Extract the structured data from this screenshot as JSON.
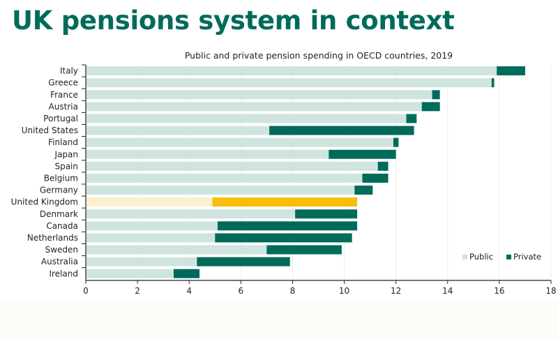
{
  "page": {
    "title": "UK pensions system in context"
  },
  "colors": {
    "public": "#cfe4df",
    "private": "#006b5a",
    "highlight_public": "#fdf0cf",
    "highlight_private": "#f7be0c",
    "title": "#006b5a"
  },
  "chart_data": {
    "type": "bar",
    "orientation": "horizontal",
    "stacked": true,
    "title": "Public and private pension spending in OECD countries, 2019",
    "xlabel": "",
    "ylabel": "",
    "xlim": [
      0,
      18
    ],
    "xticks": [
      0,
      2,
      4,
      6,
      8,
      10,
      12,
      14,
      16,
      18
    ],
    "grid": "vertical",
    "legend_position": "bottom-right",
    "highlight": "United Kingdom",
    "categories": [
      "Italy",
      "Greece",
      "France",
      "Austria",
      "Portugal",
      "United States",
      "Finland",
      "Japan",
      "Spain",
      "Belgium",
      "Germany",
      "United Kingdom",
      "Denmark",
      "Canada",
      "Netherlands",
      "Sweden",
      "Australia",
      "Ireland"
    ],
    "series": [
      {
        "name": "Public",
        "values": [
          15.9,
          15.7,
          13.4,
          13.0,
          12.4,
          7.1,
          11.9,
          9.4,
          11.3,
          10.7,
          10.4,
          4.9,
          8.1,
          5.1,
          5.0,
          7.0,
          4.3,
          3.4
        ]
      },
      {
        "name": "Private",
        "values": [
          1.1,
          0.1,
          0.3,
          0.7,
          0.4,
          5.6,
          0.2,
          2.6,
          0.4,
          1.0,
          0.7,
          5.6,
          2.4,
          5.4,
          5.3,
          2.9,
          3.6,
          1.0
        ]
      }
    ]
  }
}
